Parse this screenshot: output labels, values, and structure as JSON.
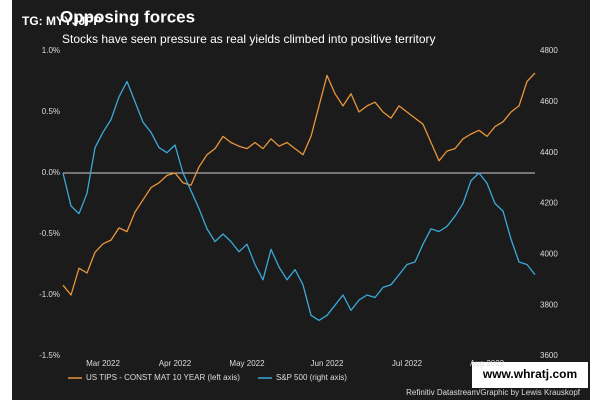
{
  "chart_data": {
    "type": "line",
    "title": "Opposing forces",
    "subtitle": "Stocks have seen pressure as real yields climbed into positive territory",
    "watermark": "TG: MYYJJPP",
    "watermark_2": "www.whratj.com",
    "source": "Refinitiv Datastream/Graphic by Lewis Krauskopf",
    "categories": [
      null,
      null,
      null,
      null,
      null,
      "Mar 2022",
      null,
      null,
      null,
      null,
      null,
      null,
      null,
      null,
      "Apr 2022",
      null,
      null,
      null,
      null,
      null,
      null,
      null,
      null,
      "May 2022",
      null,
      null,
      null,
      null,
      null,
      null,
      null,
      null,
      null,
      "Jun 2022",
      null,
      null,
      null,
      null,
      null,
      null,
      null,
      null,
      null,
      "Jul 2022",
      null,
      null,
      null,
      null,
      null,
      null,
      null,
      null,
      null,
      "Aug 2022",
      null,
      null,
      null,
      null,
      null,
      null
    ],
    "series": [
      {
        "name": "US TIPS - CONST MAT 10 YEAR (left axis)",
        "color": "#e8953c",
        "axis": "y",
        "values": [
          -0.92,
          -1.0,
          -0.78,
          -0.82,
          -0.65,
          -0.58,
          -0.55,
          -0.45,
          -0.48,
          -0.32,
          -0.22,
          -0.12,
          -0.08,
          -0.02,
          0.0,
          -0.08,
          -0.1,
          0.05,
          0.15,
          0.2,
          0.3,
          0.25,
          0.22,
          0.2,
          0.25,
          0.2,
          0.28,
          0.22,
          0.25,
          0.2,
          0.15,
          0.3,
          0.55,
          0.8,
          0.65,
          0.55,
          0.65,
          0.5,
          0.55,
          0.58,
          0.5,
          0.45,
          0.55,
          0.5,
          0.45,
          0.4,
          0.25,
          0.1,
          0.18,
          0.2,
          0.28,
          0.32,
          0.35,
          0.3,
          0.38,
          0.42,
          0.5,
          0.55,
          0.75,
          0.82
        ]
      },
      {
        "name": "S&P 500 (right axis)",
        "color": "#3aa9d9",
        "axis": "y2",
        "values": [
          4320,
          4190,
          4160,
          4240,
          4420,
          4480,
          4530,
          4620,
          4680,
          4600,
          4520,
          4480,
          4420,
          4400,
          4430,
          4320,
          4250,
          4180,
          4100,
          4050,
          4080,
          4050,
          4010,
          4040,
          3960,
          3900,
          4020,
          3950,
          3900,
          3940,
          3880,
          3760,
          3740,
          3760,
          3800,
          3840,
          3780,
          3820,
          3840,
          3830,
          3870,
          3880,
          3920,
          3960,
          3970,
          4040,
          4100,
          4090,
          4110,
          4150,
          4200,
          4290,
          4320,
          4280,
          4200,
          4170,
          4060,
          3970,
          3960,
          3920
        ]
      }
    ],
    "ylim": [
      -1.5,
      1.0
    ],
    "yticks": [
      {
        "value": -1.5,
        "label": "-1.5%"
      },
      {
        "value": -1.0,
        "label": "-1.0%"
      },
      {
        "value": -0.5,
        "label": "-0.5%"
      },
      {
        "value": 0.0,
        "label": "0.0%"
      },
      {
        "value": 0.5,
        "label": "0.5%"
      },
      {
        "value": 1.0,
        "label": "1.0%"
      }
    ],
    "y2lim": [
      3600,
      4800
    ],
    "y2ticks": [
      3600,
      3800,
      4000,
      4200,
      4400,
      4600,
      4800
    ],
    "grid": false,
    "legend": "bottom-left"
  }
}
